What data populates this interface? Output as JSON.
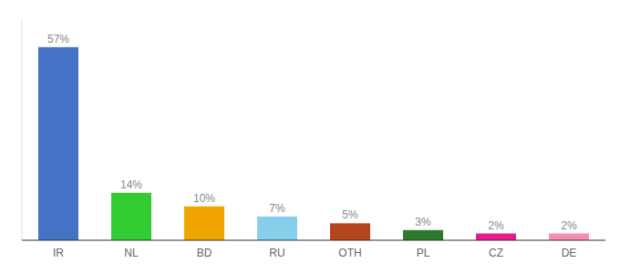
{
  "chart_data": {
    "type": "bar",
    "categories": [
      "IR",
      "NL",
      "BD",
      "RU",
      "OTH",
      "PL",
      "CZ",
      "DE"
    ],
    "values": [
      57,
      14,
      10,
      7,
      5,
      3,
      2,
      2
    ],
    "value_labels": [
      "57%",
      "14%",
      "10%",
      "7%",
      "5%",
      "3%",
      "2%",
      "2%"
    ],
    "colors": [
      "#4472c4",
      "#33cc33",
      "#f0a500",
      "#87ceeb",
      "#b5451b",
      "#2d7a2d",
      "#e91e8c",
      "#f48fb1"
    ],
    "ylim": [
      0,
      65
    ],
    "data_labels": true,
    "tick_labels": "x"
  }
}
